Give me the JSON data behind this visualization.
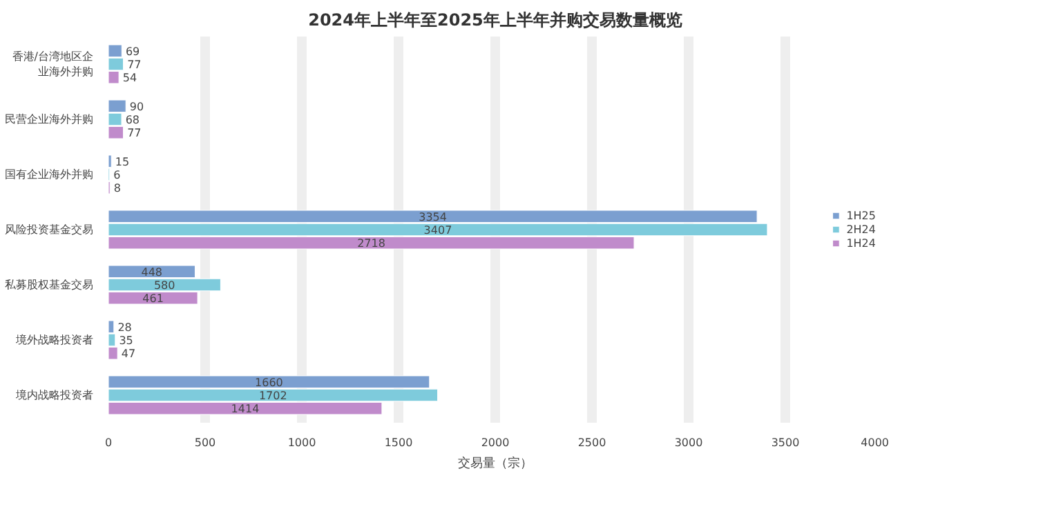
{
  "chart_data": {
    "type": "bar",
    "orientation": "horizontal",
    "title": "2024年上半年至2025年上半年并购交易数量概览",
    "xlabel": "交易量（宗）",
    "categories": [
      "香港/台湾地区企业海外并购",
      "民营企业海外并购",
      "国有企业海外并购",
      "风险投资基金交易",
      "私募股权基金交易",
      "境外战略投资者",
      "境内战略投资者"
    ],
    "series": [
      {
        "name": "1H25",
        "color": "#7b9fd0",
        "values": [
          69,
          90,
          15,
          3354,
          448,
          28,
          1660
        ]
      },
      {
        "name": "2H24",
        "color": "#7ecbdc",
        "values": [
          77,
          68,
          6,
          3407,
          580,
          35,
          1702
        ]
      },
      {
        "name": "1H24",
        "color": "#c08bcb",
        "values": [
          54,
          77,
          8,
          2718,
          461,
          47,
          1414
        ]
      }
    ],
    "xlim": [
      0,
      4000
    ],
    "xticks": [
      0,
      500,
      1000,
      1500,
      2000,
      2500,
      3000,
      3500,
      4000
    ],
    "grid": "x",
    "legend": "right",
    "data_labels": true
  }
}
